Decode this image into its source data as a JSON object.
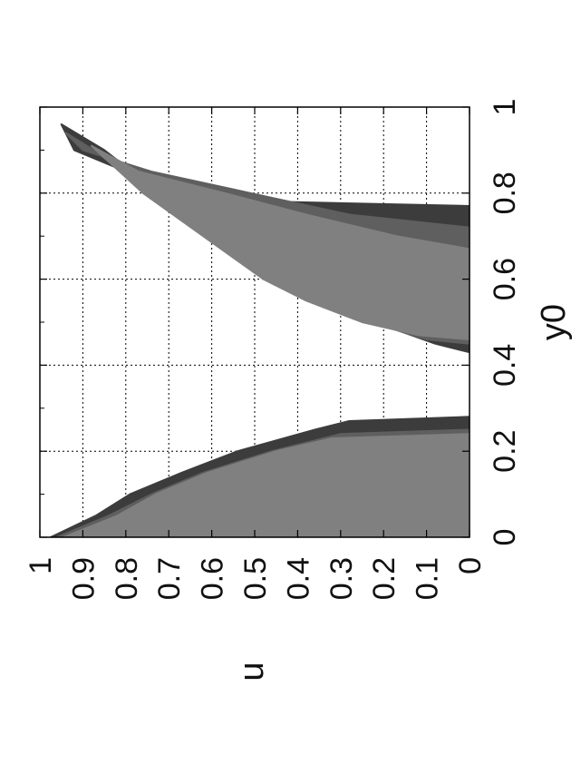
{
  "chart_data": {
    "type": "area",
    "orientation": "rotated-90-clockwise",
    "xlabel": "y0",
    "ylabel": "u",
    "xlim": [
      0,
      1
    ],
    "ylim": [
      0,
      1
    ],
    "xticks": [
      "0",
      "0.2",
      "0.4",
      "0.6",
      "0.8",
      "1"
    ],
    "yticks": [
      "0",
      "0.1",
      "0.2",
      "0.3",
      "0.4",
      "0.5",
      "0.6",
      "0.7",
      "0.8",
      "0.9",
      "1"
    ],
    "grid": true,
    "grid_style": "dotted",
    "colors": {
      "background": "#ffffff",
      "level_light": "#808080",
      "level_mid": "#5f5f5f",
      "level_dark": "#3c3c3c",
      "frame": "#000000",
      "grid": "#000000"
    },
    "regions": [
      {
        "id": "lower",
        "bands": [
          {
            "level": "level_dark",
            "boundary": [
              [
                0,
                0.975
              ],
              [
                0.05,
                0.87
              ],
              [
                0.1,
                0.79
              ],
              [
                0.15,
                0.67
              ],
              [
                0.2,
                0.54
              ],
              [
                0.25,
                0.36
              ],
              [
                0.27,
                0.28
              ],
              [
                0.28,
                0.0
              ]
            ]
          },
          {
            "level": "level_mid",
            "boundary": [
              [
                0,
                0.96
              ],
              [
                0.05,
                0.84
              ],
              [
                0.1,
                0.74
              ],
              [
                0.15,
                0.62
              ],
              [
                0.2,
                0.46
              ],
              [
                0.24,
                0.3
              ],
              [
                0.25,
                0.0
              ]
            ]
          },
          {
            "level": "level_light",
            "boundary": [
              [
                0,
                0.945
              ],
              [
                0.05,
                0.82
              ],
              [
                0.1,
                0.73
              ],
              [
                0.15,
                0.61
              ],
              [
                0.2,
                0.45
              ],
              [
                0.23,
                0.32
              ],
              [
                0.24,
                0.0
              ]
            ]
          }
        ]
      },
      {
        "id": "upper",
        "bands": [
          {
            "level": "level_dark",
            "lower": [
              [
                0.96,
                0.95
              ],
              [
                0.9,
                0.85
              ],
              [
                0.8,
                0.72
              ],
              [
                0.7,
                0.58
              ],
              [
                0.6,
                0.44
              ],
              [
                0.55,
                0.35
              ],
              [
                0.5,
                0.22
              ],
              [
                0.45,
                0.08
              ],
              [
                0.43,
                0.0
              ]
            ],
            "upper": [
              [
                0.96,
                0.95
              ],
              [
                0.9,
                0.92
              ],
              [
                0.85,
                0.8
              ],
              [
                0.8,
                0.57
              ],
              [
                0.78,
                0.45
              ],
              [
                0.77,
                0.0
              ]
            ]
          },
          {
            "level": "level_mid",
            "lower": [
              [
                0.94,
                0.94
              ],
              [
                0.9,
                0.875
              ],
              [
                0.8,
                0.74
              ],
              [
                0.7,
                0.6
              ],
              [
                0.6,
                0.46
              ],
              [
                0.55,
                0.36
              ],
              [
                0.5,
                0.23
              ],
              [
                0.46,
                0.1
              ],
              [
                0.45,
                0.0
              ]
            ],
            "upper": [
              [
                0.94,
                0.94
              ],
              [
                0.9,
                0.9
              ],
              [
                0.85,
                0.74
              ],
              [
                0.8,
                0.51
              ],
              [
                0.75,
                0.28
              ],
              [
                0.72,
                0.0
              ]
            ]
          },
          {
            "level": "level_light",
            "lower": [
              [
                0.91,
                0.88
              ],
              [
                0.8,
                0.76
              ],
              [
                0.7,
                0.62
              ],
              [
                0.6,
                0.48
              ],
              [
                0.55,
                0.38
              ],
              [
                0.5,
                0.25
              ],
              [
                0.47,
                0.12
              ],
              [
                0.46,
                0.0
              ]
            ],
            "upper": [
              [
                0.91,
                0.88
              ],
              [
                0.85,
                0.77
              ],
              [
                0.8,
                0.57
              ],
              [
                0.75,
                0.38
              ],
              [
                0.7,
                0.17
              ],
              [
                0.67,
                0.0
              ]
            ]
          }
        ]
      }
    ]
  }
}
